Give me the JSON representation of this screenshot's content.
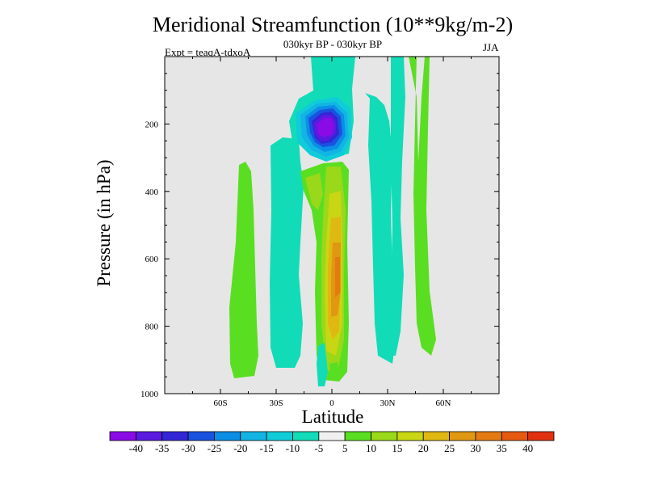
{
  "chart_data": {
    "type": "contour",
    "title": "Meridional Streamfunction (10**9kg/m-2)",
    "subtitle": "030kyr BP - 030kyr BP",
    "experiment": "Expt = teaqA-tdxoA",
    "season": "JJA",
    "xlabel": "Latitude",
    "ylabel": "Pressure (in hPa)",
    "xlim": [
      -90,
      90
    ],
    "ylim": [
      1000,
      0
    ],
    "x_ticks": [
      {
        "value": -60,
        "label": "60S"
      },
      {
        "value": -30,
        "label": "30S"
      },
      {
        "value": 0,
        "label": "0"
      },
      {
        "value": 30,
        "label": "30N"
      },
      {
        "value": 60,
        "label": "60N"
      }
    ],
    "y_ticks": [
      {
        "value": 200,
        "label": "200"
      },
      {
        "value": 400,
        "label": "400"
      },
      {
        "value": 600,
        "label": "600"
      },
      {
        "value": 800,
        "label": "800"
      },
      {
        "value": 1000,
        "label": "1000"
      }
    ],
    "missing_color": "#e6e6e6",
    "colorbar": {
      "levels": [
        "-40",
        "-35",
        "-30",
        "-25",
        "-20",
        "-15",
        "-10",
        "-5",
        "5",
        "10",
        "15",
        "20",
        "25",
        "30",
        "35",
        "40"
      ],
      "colors": [
        "#8a0be6",
        "#5a1ae0",
        "#3226d6",
        "#1a52e0",
        "#0a8ee6",
        "#12b4e4",
        "#10ccd8",
        "#12dcb8",
        "#f0f0f0",
        "#5ade22",
        "#9ad81a",
        "#c8d614",
        "#e0b812",
        "#e09812",
        "#e47a12",
        "#e65a10",
        "#e03010"
      ]
    },
    "features": [
      {
        "name": "deep negative cell (-40 to -30)",
        "lat": [
          -12,
          8
        ],
        "p": [
          120,
          290
        ],
        "min": -40
      },
      {
        "name": "positive cell core (+30)",
        "lat": [
          0,
          8
        ],
        "p": [
          500,
          800
        ],
        "max": 30
      },
      {
        "name": "weak negative band (-10)",
        "lat": [
          -30,
          50
        ],
        "p": [
          0,
          900
        ]
      },
      {
        "name": "weak positive band (+5 to +10)",
        "lat": [
          -55,
          -45
        ],
        "p": [
          400,
          950
        ]
      }
    ]
  }
}
